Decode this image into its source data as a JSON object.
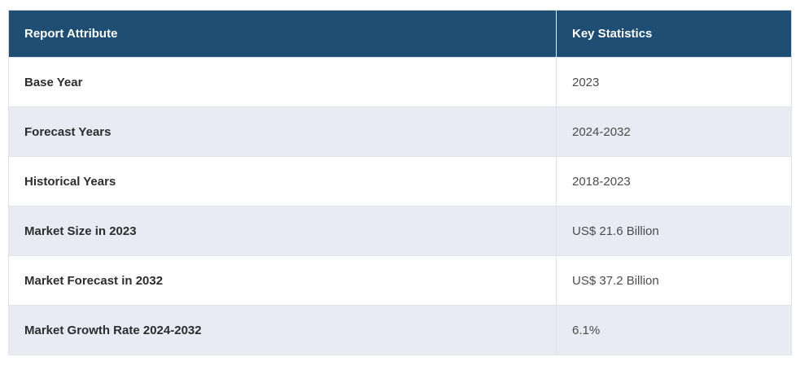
{
  "chart_data": {
    "type": "table",
    "columns": [
      "Report Attribute",
      "Key Statistics"
    ],
    "rows": [
      {
        "attribute": "Base Year",
        "value": "2023"
      },
      {
        "attribute": "Forecast Years",
        "value": "2024-2032"
      },
      {
        "attribute": "Historical Years",
        "value": "2018-2023"
      },
      {
        "attribute": "Market Size in 2023",
        "value": "US$ 21.6 Billion"
      },
      {
        "attribute": "Market Forecast in 2032",
        "value": "US$ 37.2 Billion"
      },
      {
        "attribute": "Market Growth Rate 2024-2032",
        "value": "6.1%"
      }
    ]
  },
  "colors": {
    "header_bg": "#1F4E74",
    "header_text": "#FFFFFF",
    "row_bg": "#FFFFFF",
    "row_alt_bg": "#E8EAF4",
    "label_text": "#2D2D2D",
    "value_text": "#4C4C4C",
    "border": "#D8D8D8",
    "cell_border": "#E0E2EA"
  }
}
